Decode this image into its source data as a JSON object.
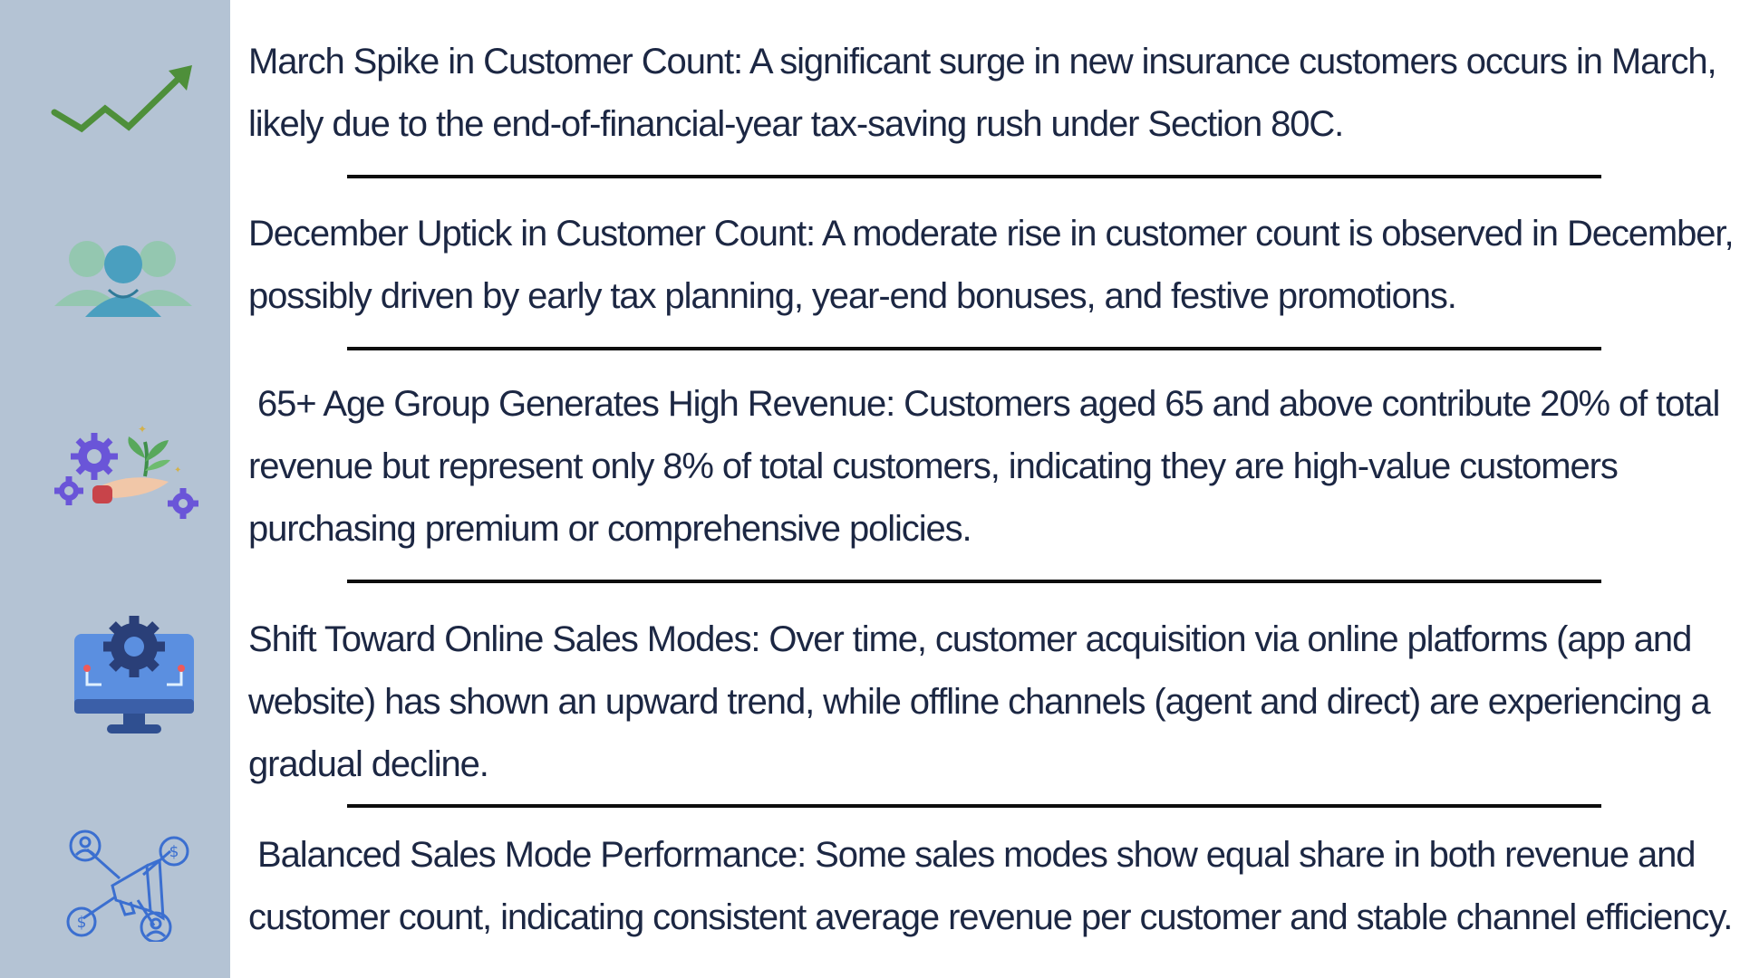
{
  "insights": [
    {
      "icon": "trend-up-icon",
      "lines": [
        "March Spike in Customer Count: A significant surge in new insurance customers occurs in March,",
        "likely due to the end-of-financial-year tax-saving rush under Section 80C."
      ]
    },
    {
      "icon": "customers-group-icon",
      "lines": [
        "December Uptick in Customer Count: A moderate rise in customer count is observed in December,",
        "possibly driven by early tax planning, year-end bonuses, and festive promotions."
      ]
    },
    {
      "icon": "gears-hand-plant-icon",
      "lines": [
        " 65+ Age Group Generates High Revenue: Customers aged 65 and above contribute 20% of total",
        "revenue but represent only 8% of total customers, indicating they are high-value customers",
        "purchasing premium or comprehensive policies."
      ]
    },
    {
      "icon": "monitor-gear-icon",
      "lines": [
        "Shift Toward Online Sales Modes: Over time, customer acquisition via online platforms (app and",
        "website) has shown an upward trend, while offline channels (agent and direct) are experiencing a",
        "gradual decline."
      ]
    },
    {
      "icon": "megaphone-network-icon",
      "lines": [
        " Balanced Sales Mode Performance: Some sales modes show equal share in both revenue and",
        "customer count, indicating consistent average revenue per customer and stable channel efficiency."
      ]
    }
  ],
  "colors": {
    "sidebar": "#b4c3d4",
    "text": "#1c2743",
    "divider": "#0d0d0d",
    "trend_green": "#4e8f3a",
    "icon_blue": "#3b6fd0",
    "icon_purple": "#6a55d8"
  }
}
